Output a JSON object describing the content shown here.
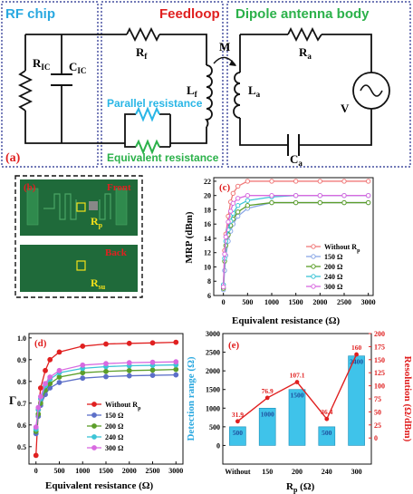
{
  "circuit": {
    "title_rf": "RF chip",
    "title_feedloop": "Feedloop",
    "title_dipole": "Dipole antenna body",
    "label_M": "M",
    "label_RIC": "R",
    "label_RIC_sub": "IC",
    "label_CIC": "C",
    "label_CIC_sub": "IC",
    "label_Rf": "R",
    "label_Rf_sub": "f",
    "label_Lf": "L",
    "label_Lf_sub": "f",
    "label_La": "L",
    "label_La_sub": "a",
    "label_Ra": "R",
    "label_Ra_sub": "a",
    "label_V": "V",
    "label_Ca": "C",
    "label_Ca_sub": "a",
    "parallel": "Parallel resistance",
    "equivalent": "Equivalent resistance",
    "panel": "(a)",
    "colors": {
      "rf": "#29a8e0",
      "feedloop": "#e02020",
      "dipole": "#2bb14a",
      "parallel": "#29b6e6",
      "equivalent": "#2bb14a"
    }
  },
  "photo": {
    "front": "Front",
    "back": "Back",
    "panel": "(b)",
    "rp": "R",
    "rp_sub": "p",
    "rsu": "R",
    "rsu_sub": "su"
  },
  "chart_data": [
    {
      "type": "line",
      "panel": "(c)",
      "xlabel": "Equivalent resistance (Ω)",
      "ylabel": "MRP (dBm)",
      "xlim": [
        -200,
        3100
      ],
      "ylim": [
        6,
        22.5
      ],
      "xticks": [
        "0",
        "500",
        "1000",
        "1500",
        "2000",
        "2500",
        "3000"
      ],
      "yticks": [
        "6",
        "8",
        "10",
        "12",
        "14",
        "16",
        "18",
        "20",
        "22"
      ],
      "x": [
        0,
        25,
        50,
        100,
        150,
        200,
        300,
        500,
        1000,
        1500,
        2000,
        2500,
        3000
      ],
      "series": [
        {
          "name": "Without R",
          "sub": "p",
          "color": "#f07a7a",
          "values": [
            7.5,
            12.3,
            14.6,
            17.1,
            19.1,
            20.3,
            21.3,
            22.0,
            22.0,
            22.0,
            22.0,
            22.0,
            22.0
          ]
        },
        {
          "name": "150 Ω",
          "color": "#8aa7e6",
          "values": [
            6.8,
            9.5,
            11.6,
            13.6,
            15.0,
            16.0,
            17.1,
            18.2,
            19.0,
            19.0,
            19.0,
            19.0,
            19.0
          ]
        },
        {
          "name": "200 Ω",
          "color": "#5c9e2a",
          "values": [
            7.0,
            10.8,
            13.0,
            14.5,
            15.8,
            16.7,
            17.7,
            18.6,
            19.0,
            19.0,
            19.0,
            19.0,
            19.0
          ]
        },
        {
          "name": "240 Ω",
          "color": "#3cc4d6",
          "values": [
            7.5,
            11.2,
            13.6,
            15.2,
            16.4,
            17.5,
            18.6,
            19.3,
            19.8,
            20.0,
            20.0,
            20.0,
            20.0
          ]
        },
        {
          "name": "300 Ω",
          "color": "#d86ae0",
          "values": [
            7.2,
            11.8,
            14.2,
            16.3,
            17.8,
            18.9,
            19.6,
            20.0,
            20.0,
            20.0,
            20.0,
            20.0,
            20.0
          ]
        }
      ]
    },
    {
      "type": "line",
      "panel": "(d)",
      "xlabel": "Equivalent resistance (Ω)",
      "ylabel": "Γ",
      "xlim": [
        -150,
        3150
      ],
      "ylim": [
        0.42,
        1.02
      ],
      "xticks": [
        "0",
        "500",
        "1000",
        "1500",
        "2000",
        "2500",
        "3000"
      ],
      "yticks": [
        "0.5",
        "0.6",
        "0.7",
        "0.8",
        "0.9",
        "1.0"
      ],
      "x": [
        0,
        50,
        100,
        200,
        300,
        500,
        1000,
        1500,
        2000,
        2500,
        3000
      ],
      "series": [
        {
          "name": "Without R",
          "sub": "p",
          "color": "#e02020",
          "values": [
            0.46,
            0.67,
            0.77,
            0.85,
            0.9,
            0.935,
            0.962,
            0.972,
            0.975,
            0.977,
            0.98
          ]
        },
        {
          "name": "150 Ω",
          "color": "#5c6fc8",
          "values": [
            0.56,
            0.64,
            0.69,
            0.74,
            0.77,
            0.795,
            0.815,
            0.822,
            0.826,
            0.828,
            0.83
          ]
        },
        {
          "name": "200 Ω",
          "color": "#5c9e2a",
          "values": [
            0.57,
            0.65,
            0.7,
            0.76,
            0.79,
            0.82,
            0.84,
            0.846,
            0.85,
            0.852,
            0.855
          ]
        },
        {
          "name": "240 Ω",
          "color": "#3cc4d6",
          "values": [
            0.58,
            0.67,
            0.72,
            0.78,
            0.81,
            0.84,
            0.86,
            0.868,
            0.872,
            0.874,
            0.876
          ]
        },
        {
          "name": "300 Ω",
          "color": "#d86ae0",
          "values": [
            0.59,
            0.68,
            0.73,
            0.79,
            0.82,
            0.85,
            0.875,
            0.882,
            0.886,
            0.888,
            0.89
          ]
        }
      ]
    },
    {
      "type": "bar",
      "panel": "(e)",
      "categories": [
        "Without",
        "150",
        "200",
        "240",
        "300"
      ],
      "xlabel": "R",
      "xlabel_sub": "p",
      "xlabel_unit": " (Ω)",
      "ylabel": "Detection range (Ω)",
      "y2label": "Resolution (Ω/dBm)",
      "ylim": [
        -500,
        3000
      ],
      "y2lim": [
        -50,
        200
      ],
      "yticks": [
        "0",
        "500",
        "1000",
        "1500",
        "2000",
        "2500",
        "3000"
      ],
      "y2ticks": [
        "0",
        "25",
        "50",
        "75",
        "100",
        "125",
        "150",
        "175",
        "200"
      ],
      "bar_values": [
        500,
        1000,
        1500,
        500,
        2400
      ],
      "bar_labels": [
        "500",
        "1000",
        "1500",
        "500",
        "2400"
      ],
      "line_values": [
        31.9,
        76.9,
        107.1,
        36.4,
        160
      ],
      "line_labels": [
        "31.9",
        "76.9",
        "107.1",
        "36.4",
        "160"
      ],
      "bar_color": "#3fc3ea",
      "line_color": "#e02020"
    }
  ]
}
